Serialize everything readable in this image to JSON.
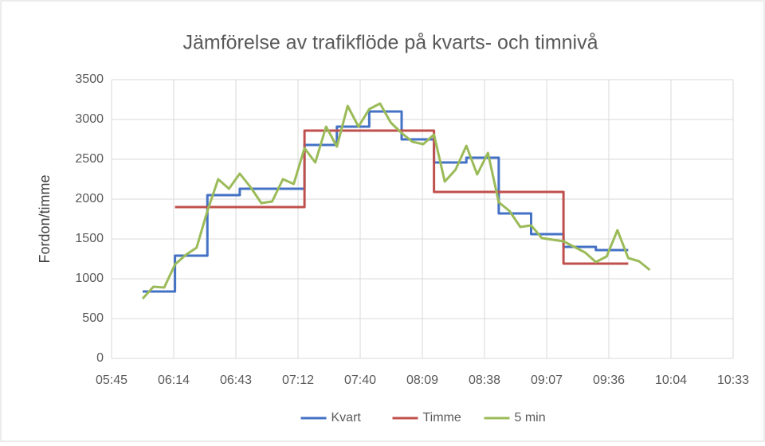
{
  "chart_data": {
    "type": "line",
    "title": "Jämförelse av trafikflöde på kvarts- och timnivå",
    "y_label": "Fordon/timme",
    "xlim": [
      345.6,
      633.6
    ],
    "xticks": [
      {
        "value": 345.6,
        "label": "05:45"
      },
      {
        "value": 374.4,
        "label": "06:14"
      },
      {
        "value": 403.2,
        "label": "06:43"
      },
      {
        "value": 432,
        "label": "07:12"
      },
      {
        "value": 460.8,
        "label": "07:40"
      },
      {
        "value": 489.6,
        "label": "08:09"
      },
      {
        "value": 518.4,
        "label": "08:38"
      },
      {
        "value": 547.2,
        "label": "09:07"
      },
      {
        "value": 576,
        "label": "09:36"
      },
      {
        "value": 604.8,
        "label": "10:04"
      },
      {
        "value": 633.6,
        "label": "10:33"
      }
    ],
    "ylim": [
      0,
      3500
    ],
    "yticks": [
      0,
      500,
      1000,
      1500,
      2000,
      2500,
      3000,
      3500
    ],
    "grid": true,
    "legend": "bottom",
    "series": [
      {
        "name": "Kvart",
        "color": "#4472c4",
        "x": [
          360,
          375,
          375,
          390,
          390,
          405,
          405,
          435,
          435,
          450,
          450,
          465,
          465,
          480,
          480,
          495,
          495,
          510,
          510,
          525,
          525,
          540,
          540,
          555,
          555,
          570,
          570,
          585
        ],
        "values": [
          840,
          840,
          1290,
          1290,
          2050,
          2050,
          2130,
          2130,
          2680,
          2680,
          2910,
          2910,
          3100,
          3100,
          2750,
          2750,
          2460,
          2460,
          2520,
          2520,
          1820,
          1820,
          1560,
          1560,
          1400,
          1400,
          1360,
          1360
        ]
      },
      {
        "name": "Timme",
        "color": "#c0504d",
        "x": [
          375,
          435,
          435,
          495,
          495,
          555,
          555,
          585
        ],
        "values": [
          1900,
          1900,
          2860,
          2860,
          2090,
          2090,
          1190,
          1190
        ]
      },
      {
        "name": "5 min",
        "color": "#9bbb59",
        "x": [
          360,
          365,
          370,
          375,
          380,
          385,
          390,
          395,
          400,
          405,
          410,
          415,
          420,
          425,
          430,
          435,
          440,
          445,
          450,
          455,
          460,
          465,
          470,
          475,
          480,
          485,
          490,
          495,
          500,
          505,
          510,
          515,
          520,
          525,
          530,
          535,
          540,
          545,
          550,
          555,
          560,
          565,
          570,
          575,
          580,
          585,
          590,
          595
        ],
        "values": [
          750,
          900,
          890,
          1180,
          1300,
          1390,
          1850,
          2250,
          2130,
          2320,
          2150,
          1950,
          1970,
          2250,
          2190,
          2640,
          2460,
          2910,
          2660,
          3170,
          2910,
          3130,
          3200,
          2960,
          2830,
          2720,
          2690,
          2810,
          2220,
          2370,
          2670,
          2310,
          2580,
          1960,
          1850,
          1650,
          1670,
          1510,
          1490,
          1470,
          1400,
          1330,
          1210,
          1280,
          1610,
          1260,
          1220,
          1110
        ]
      }
    ]
  }
}
